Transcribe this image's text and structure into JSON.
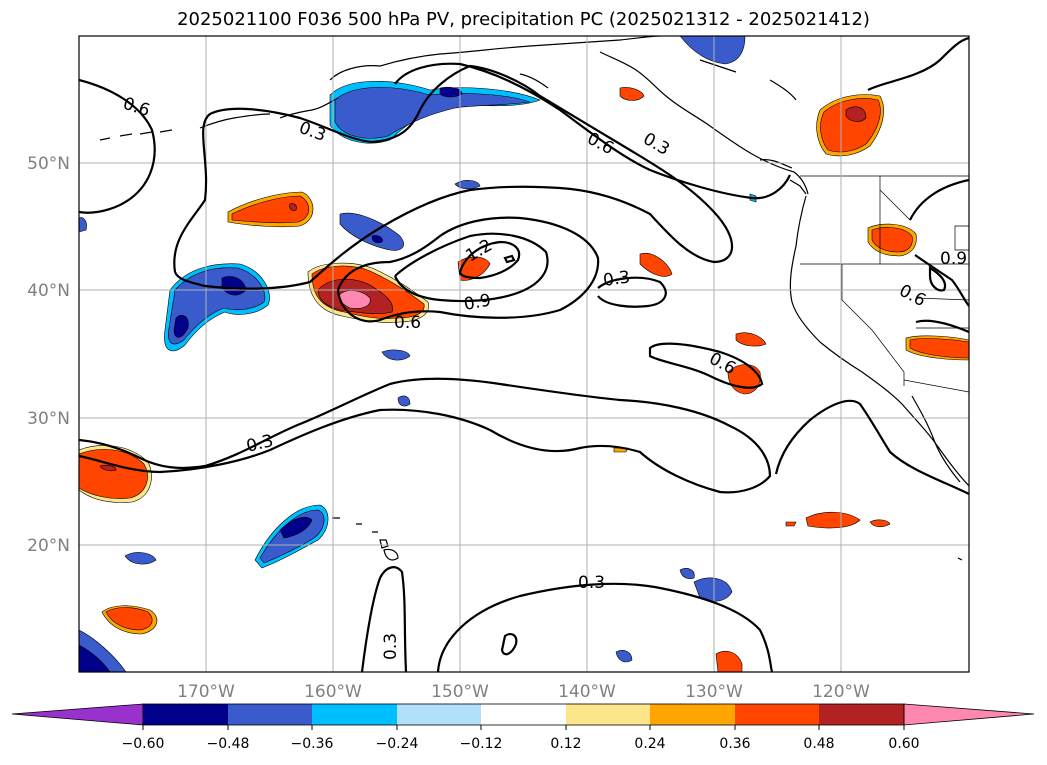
{
  "title": "2025021100 F036 500 hPa PV, precipitation PC (2025021312 - 2025021412)",
  "map": {
    "lon_labels": [
      "170°W",
      "160°W",
      "150°W",
      "140°W",
      "130°W",
      "120°W"
    ],
    "lat_labels": [
      "50°N",
      "40°N",
      "30°N",
      "20°N"
    ],
    "contour_labels": [
      "0.6",
      "0.3",
      "0.6",
      "0.3",
      "1.2",
      "0.9",
      "0.6",
      "0.3",
      "0.6",
      "0.3",
      "0.3",
      "0.3",
      "0.9",
      "0.6"
    ]
  },
  "colorbar": {
    "ticks": [
      "−0.60",
      "−0.48",
      "−0.36",
      "−0.24",
      "−0.12",
      "0.12",
      "0.24",
      "0.36",
      "0.48",
      "0.60"
    ],
    "colors": [
      "#9932cc",
      "#00008b",
      "#3a5bcc",
      "#00bfff",
      "#b0e0fa",
      "#ffffff",
      "#fde68a",
      "#ffa500",
      "#ff4500",
      "#b22222",
      "#ff88b0"
    ]
  }
}
